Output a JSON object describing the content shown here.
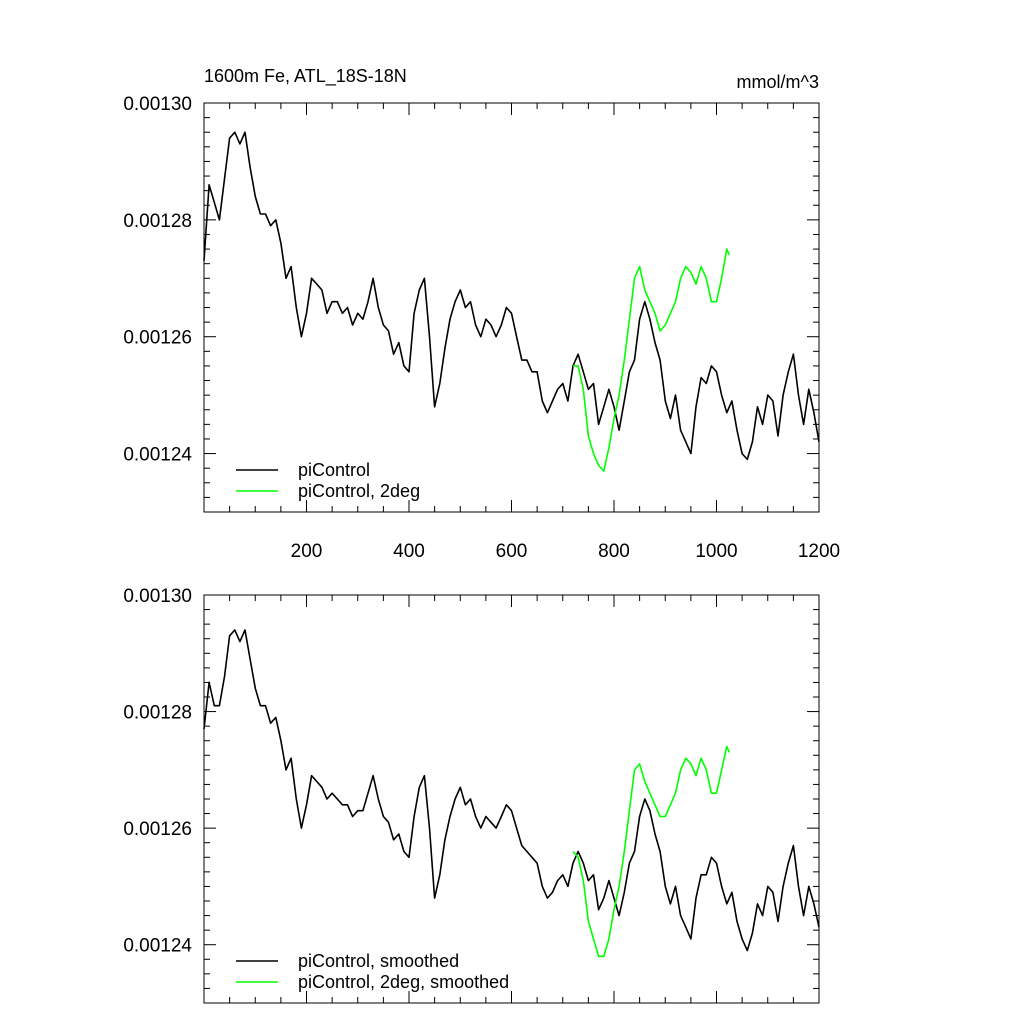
{
  "colors": {
    "black": "#000000",
    "green": "#00ff00"
  },
  "chart_data": [
    {
      "type": "line",
      "title": "1600m Fe, ATL_18S-18N",
      "units": "mmol/m^3",
      "xlim": [
        0,
        1200
      ],
      "ylim": [
        0.00123,
        0.0013
      ],
      "xticks": [
        200,
        400,
        600,
        800,
        1000,
        1200
      ],
      "xtick_labels": [
        "200",
        "400",
        "600",
        "800",
        "1000",
        "1200"
      ],
      "yticks": [
        0.00124,
        0.00126,
        0.00128,
        0.0013
      ],
      "ytick_labels": [
        "0.00124",
        "0.00126",
        "0.00128",
        "0.00130"
      ],
      "legend_position": "bottom-left",
      "series": [
        {
          "name": "piControl",
          "color": "#000000",
          "x": [
            0,
            10,
            20,
            30,
            40,
            50,
            60,
            70,
            80,
            90,
            100,
            110,
            120,
            130,
            140,
            150,
            160,
            170,
            180,
            190,
            200,
            210,
            220,
            230,
            240,
            250,
            260,
            270,
            280,
            290,
            300,
            310,
            320,
            330,
            340,
            350,
            360,
            370,
            380,
            390,
            400,
            410,
            420,
            430,
            440,
            450,
            460,
            470,
            480,
            490,
            500,
            510,
            520,
            530,
            540,
            550,
            560,
            570,
            580,
            590,
            600,
            610,
            620,
            630,
            640,
            650,
            660,
            670,
            680,
            690,
            700,
            710,
            720,
            730,
            740,
            750,
            760,
            770,
            780,
            790,
            800,
            810,
            820,
            830,
            840,
            850,
            860,
            870,
            880,
            890,
            900,
            910,
            920,
            930,
            940,
            950,
            960,
            970,
            980,
            990,
            1000,
            1010,
            1020,
            1030,
            1040,
            1050,
            1060,
            1070,
            1080,
            1090,
            1100,
            1110,
            1120,
            1130,
            1140,
            1150,
            1160,
            1170,
            1180,
            1190,
            1200
          ],
          "y": [
            0.001273,
            0.001286,
            0.001283,
            0.00128,
            0.001287,
            0.001294,
            0.001295,
            0.001293,
            0.001295,
            0.001289,
            0.001284,
            0.001281,
            0.001281,
            0.001279,
            0.00128,
            0.001276,
            0.00127,
            0.001272,
            0.001265,
            0.00126,
            0.001264,
            0.00127,
            0.001269,
            0.001268,
            0.001264,
            0.001266,
            0.001266,
            0.001264,
            0.001265,
            0.001262,
            0.001264,
            0.001263,
            0.001266,
            0.00127,
            0.001265,
            0.001262,
            0.001261,
            0.001257,
            0.001259,
            0.001255,
            0.001254,
            0.001264,
            0.001268,
            0.00127,
            0.00126,
            0.001248,
            0.001252,
            0.001258,
            0.001263,
            0.001266,
            0.001268,
            0.001265,
            0.001266,
            0.001262,
            0.00126,
            0.001263,
            0.001262,
            0.00126,
            0.001262,
            0.001265,
            0.001264,
            0.00126,
            0.001256,
            0.001256,
            0.001254,
            0.001254,
            0.001249,
            0.001247,
            0.001249,
            0.001251,
            0.001252,
            0.001249,
            0.001255,
            0.001257,
            0.001254,
            0.001251,
            0.001252,
            0.001245,
            0.001248,
            0.001251,
            0.001248,
            0.001244,
            0.001249,
            0.001254,
            0.001256,
            0.001263,
            0.001266,
            0.001263,
            0.001259,
            0.001256,
            0.001249,
            0.001246,
            0.00125,
            0.001244,
            0.001242,
            0.00124,
            0.001248,
            0.001253,
            0.001252,
            0.001255,
            0.001254,
            0.00125,
            0.001247,
            0.001249,
            0.001244,
            0.00124,
            0.001239,
            0.001242,
            0.001248,
            0.001245,
            0.00125,
            0.001249,
            0.001243,
            0.00125,
            0.001254,
            0.001257,
            0.00125,
            0.001245,
            0.001251,
            0.001247,
            0.001242
          ]
        },
        {
          "name": "piControl, 2deg",
          "color": "#00ff00",
          "x": [
            720,
            730,
            740,
            750,
            760,
            770,
            780,
            790,
            800,
            810,
            820,
            830,
            840,
            850,
            860,
            870,
            880,
            890,
            900,
            910,
            920,
            930,
            940,
            950,
            960,
            970,
            980,
            990,
            1000,
            1010,
            1020,
            1025
          ],
          "y": [
            0.001255,
            0.001255,
            0.001251,
            0.001243,
            0.00124,
            0.001238,
            0.001237,
            0.001241,
            0.001246,
            0.00125,
            0.001256,
            0.001263,
            0.00127,
            0.001272,
            0.001268,
            0.001266,
            0.001264,
            0.001261,
            0.001262,
            0.001264,
            0.001266,
            0.00127,
            0.001272,
            0.001271,
            0.001269,
            0.001272,
            0.00127,
            0.001266,
            0.001266,
            0.00127,
            0.001275,
            0.001274
          ]
        }
      ]
    },
    {
      "type": "line",
      "title": "",
      "units": "",
      "xlim": [
        0,
        1200
      ],
      "ylim": [
        0.00123,
        0.0013
      ],
      "xticks": [
        200,
        400,
        600,
        800,
        1000,
        1200
      ],
      "xtick_labels": [],
      "yticks": [
        0.00124,
        0.00126,
        0.00128,
        0.0013
      ],
      "ytick_labels": [
        "0.00124",
        "0.00126",
        "0.00128",
        "0.00130"
      ],
      "legend_position": "bottom-left",
      "series": [
        {
          "name": "piControl, smoothed",
          "color": "#000000",
          "x": [
            0,
            10,
            20,
            30,
            40,
            50,
            60,
            70,
            80,
            90,
            100,
            110,
            120,
            130,
            140,
            150,
            160,
            170,
            180,
            190,
            200,
            210,
            220,
            230,
            240,
            250,
            260,
            270,
            280,
            290,
            300,
            310,
            320,
            330,
            340,
            350,
            360,
            370,
            380,
            390,
            400,
            410,
            420,
            430,
            440,
            450,
            460,
            470,
            480,
            490,
            500,
            510,
            520,
            530,
            540,
            550,
            560,
            570,
            580,
            590,
            600,
            610,
            620,
            630,
            640,
            650,
            660,
            670,
            680,
            690,
            700,
            710,
            720,
            730,
            740,
            750,
            760,
            770,
            780,
            790,
            800,
            810,
            820,
            830,
            840,
            850,
            860,
            870,
            880,
            890,
            900,
            910,
            920,
            930,
            940,
            950,
            960,
            970,
            980,
            990,
            1000,
            1010,
            1020,
            1030,
            1040,
            1050,
            1060,
            1070,
            1080,
            1090,
            1100,
            1110,
            1120,
            1130,
            1140,
            1150,
            1160,
            1170,
            1180,
            1190,
            1200
          ],
          "y": [
            0.001277,
            0.001285,
            0.001281,
            0.001281,
            0.001286,
            0.001293,
            0.001294,
            0.001292,
            0.001294,
            0.001289,
            0.001284,
            0.001281,
            0.001281,
            0.001278,
            0.001279,
            0.001275,
            0.00127,
            0.001272,
            0.001265,
            0.00126,
            0.001264,
            0.001269,
            0.001268,
            0.001267,
            0.001265,
            0.001266,
            0.001265,
            0.001264,
            0.001264,
            0.001262,
            0.001263,
            0.001263,
            0.001266,
            0.001269,
            0.001265,
            0.001262,
            0.001261,
            0.001258,
            0.001259,
            0.001256,
            0.001255,
            0.001262,
            0.001267,
            0.001269,
            0.00126,
            0.001248,
            0.001252,
            0.001258,
            0.001262,
            0.001265,
            0.001267,
            0.001264,
            0.001265,
            0.001262,
            0.00126,
            0.001262,
            0.001261,
            0.00126,
            0.001262,
            0.001264,
            0.001263,
            0.00126,
            0.001257,
            0.001256,
            0.001255,
            0.001254,
            0.00125,
            0.001248,
            0.001249,
            0.001251,
            0.001252,
            0.00125,
            0.001254,
            0.001256,
            0.001254,
            0.001251,
            0.001252,
            0.001246,
            0.001248,
            0.001251,
            0.001248,
            0.001245,
            0.001249,
            0.001254,
            0.001256,
            0.001262,
            0.001265,
            0.001263,
            0.001259,
            0.001256,
            0.00125,
            0.001247,
            0.00125,
            0.001245,
            0.001243,
            0.001241,
            0.001248,
            0.001252,
            0.001252,
            0.001255,
            0.001254,
            0.00125,
            0.001247,
            0.001249,
            0.001244,
            0.001241,
            0.001239,
            0.001242,
            0.001247,
            0.001245,
            0.00125,
            0.001249,
            0.001244,
            0.00125,
            0.001254,
            0.001257,
            0.00125,
            0.001245,
            0.00125,
            0.001247,
            0.001243
          ]
        },
        {
          "name": "piControl, 2deg, smoothed",
          "color": "#00ff00",
          "x": [
            720,
            730,
            740,
            750,
            760,
            770,
            780,
            790,
            800,
            810,
            820,
            830,
            840,
            850,
            860,
            870,
            880,
            890,
            900,
            910,
            920,
            930,
            940,
            950,
            960,
            970,
            980,
            990,
            1000,
            1010,
            1020,
            1025
          ],
          "y": [
            0.001256,
            0.001255,
            0.001251,
            0.001244,
            0.001241,
            0.001238,
            0.001238,
            0.001241,
            0.001246,
            0.00125,
            0.001256,
            0.001263,
            0.00127,
            0.001271,
            0.001268,
            0.001266,
            0.001264,
            0.001262,
            0.001262,
            0.001264,
            0.001266,
            0.00127,
            0.001272,
            0.001271,
            0.001269,
            0.001272,
            0.00127,
            0.001266,
            0.001266,
            0.00127,
            0.001274,
            0.001273
          ]
        }
      ]
    }
  ]
}
